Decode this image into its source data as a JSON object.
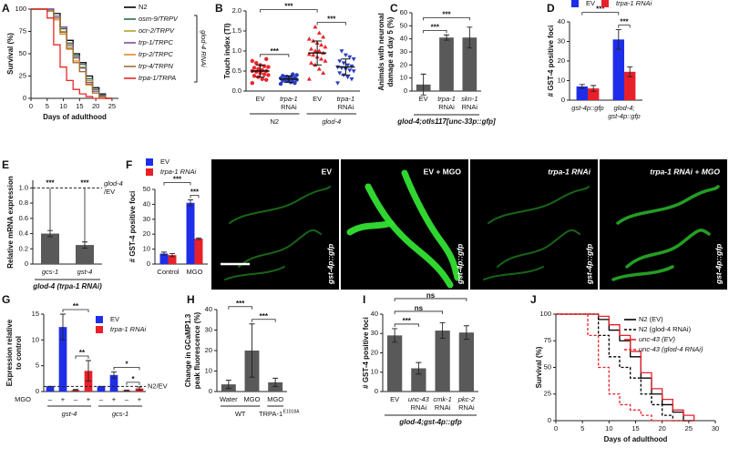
{
  "chart_data": [
    {
      "type": "line",
      "label": "A",
      "ylabel": "Survival (%)",
      "xlabel": "Days of adulthood",
      "xlim": [
        0,
        27
      ],
      "xticks": [
        0,
        5,
        10,
        15,
        20,
        25
      ],
      "ylim": [
        0,
        100
      ],
      "yticks": [
        0,
        25,
        50,
        75,
        100
      ],
      "legend": "right",
      "legend_group": "glod-4 RNAi",
      "x": [
        0,
        5,
        5,
        7,
        7,
        9,
        9,
        11,
        11,
        13,
        13,
        15,
        15,
        17,
        17,
        19,
        19,
        21,
        21,
        23,
        23,
        25,
        25
      ],
      "series": [
        {
          "name": "N2",
          "color": "#000000",
          "values": [
            100,
            100,
            100,
            100,
            95,
            95,
            80,
            80,
            65,
            65,
            50,
            50,
            40,
            40,
            25,
            25,
            12,
            12,
            5,
            5,
            0,
            0,
            0
          ]
        },
        {
          "name": "osm-9/TRPV",
          "color": "#2e6b4e",
          "values": [
            100,
            100,
            100,
            100,
            92,
            92,
            78,
            78,
            62,
            62,
            48,
            48,
            38,
            38,
            22,
            22,
            10,
            10,
            4,
            4,
            0,
            0,
            0
          ]
        },
        {
          "name": "ocr-2/TRPV",
          "color": "#b3a22c",
          "values": [
            100,
            100,
            98,
            98,
            90,
            90,
            75,
            75,
            58,
            58,
            45,
            45,
            35,
            35,
            20,
            20,
            8,
            8,
            2,
            2,
            0,
            0,
            0
          ]
        },
        {
          "name": "trp-1/TRPC",
          "color": "#7d4f96",
          "values": [
            100,
            100,
            100,
            100,
            92,
            92,
            80,
            80,
            60,
            60,
            46,
            46,
            34,
            34,
            18,
            18,
            8,
            8,
            3,
            3,
            0,
            0,
            0
          ]
        },
        {
          "name": "trp-2/TRPC",
          "color": "#e08a2a",
          "values": [
            100,
            100,
            98,
            98,
            88,
            88,
            72,
            72,
            55,
            55,
            42,
            42,
            30,
            30,
            15,
            15,
            6,
            6,
            0,
            0,
            0,
            0,
            0
          ]
        },
        {
          "name": "trp-4/TRPN",
          "color": "#9c6f34",
          "values": [
            100,
            100,
            98,
            98,
            90,
            90,
            74,
            74,
            56,
            56,
            40,
            40,
            30,
            30,
            16,
            16,
            6,
            6,
            2,
            2,
            0,
            0,
            0
          ]
        },
        {
          "name": "trpa-1/TRPA",
          "color": "#e8262a",
          "values": [
            100,
            100,
            90,
            90,
            60,
            60,
            35,
            35,
            20,
            20,
            10,
            10,
            5,
            5,
            2,
            2,
            0,
            0,
            0,
            0,
            0,
            0,
            0
          ]
        }
      ]
    },
    {
      "type": "dot",
      "label": "B",
      "ylabel": "Touch index (TI)",
      "ylim": [
        0,
        2
      ],
      "yticks": [
        {
          "value": 0,
          "label": "0.0"
        },
        0.5,
        {
          "value": 1,
          "label": "1.0"
        },
        1.5,
        {
          "value": 2,
          "label": "2.0"
        }
      ],
      "categories": [
        "EV",
        [
          "trpa-1",
          "RNAi"
        ],
        "EV",
        [
          "trpa-1",
          "RNAi"
        ]
      ],
      "groups": [
        {
          "label": "N2",
          "span": [
            0,
            1
          ]
        },
        {
          "label": "glod-4",
          "span": [
            2,
            3
          ]
        }
      ],
      "colors": [
        "#e8262a",
        "#2a3fbf",
        "#e8262a",
        "#2a3fbf"
      ],
      "markers": [
        "circle",
        "circle",
        "triangle",
        "triangle-down"
      ],
      "points": [
        [
          0.2,
          0.28,
          0.3,
          0.35,
          0.38,
          0.4,
          0.42,
          0.45,
          0.48,
          0.5,
          0.5,
          0.52,
          0.55,
          0.58,
          0.6,
          0.62,
          0.65,
          0.7,
          0.75,
          0.8
        ],
        [
          0.18,
          0.2,
          0.22,
          0.25,
          0.26,
          0.28,
          0.28,
          0.3,
          0.3,
          0.32,
          0.33,
          0.35,
          0.36,
          0.38,
          0.4,
          0.42
        ],
        [
          0.3,
          0.45,
          0.55,
          0.65,
          0.7,
          0.75,
          0.8,
          0.85,
          0.9,
          0.92,
          0.95,
          1.0,
          1.0,
          1.05,
          1.1,
          1.15,
          1.2,
          1.25,
          1.3,
          1.35,
          1.45,
          1.6
        ],
        [
          0.2,
          0.3,
          0.35,
          0.4,
          0.45,
          0.5,
          0.52,
          0.55,
          0.58,
          0.6,
          0.62,
          0.65,
          0.7,
          0.75,
          0.8,
          0.85,
          0.9,
          1.0
        ]
      ],
      "means": [
        0.5,
        0.3,
        0.95,
        0.6
      ],
      "sd": [
        0.15,
        0.08,
        0.3,
        0.2
      ],
      "comparisons": [
        {
          "pair": [
            0,
            1
          ],
          "label": "***"
        },
        {
          "pair": [
            2,
            3
          ],
          "label": "***"
        },
        {
          "pair": [
            0,
            2
          ],
          "label": "***"
        }
      ]
    },
    {
      "type": "bar",
      "label": "C",
      "ylabel": [
        "Animals with neuronal",
        "damage at day 5 (%)"
      ],
      "xlabel": "glod-4;otIs117[unc-33p::gfp]",
      "ylim": [
        0,
        60
      ],
      "yticks": [
        0,
        10,
        20,
        30,
        40,
        50,
        60
      ],
      "categories": [
        "EV",
        [
          "trpa-1",
          "RNAi"
        ],
        [
          "skn-1",
          "RNAi"
        ]
      ],
      "values": [
        5,
        41,
        41
      ],
      "errors": [
        8,
        2,
        8
      ],
      "color": "#595959",
      "comparisons": [
        {
          "pair": [
            0,
            1
          ],
          "label": "***"
        },
        {
          "pair": [
            0,
            2
          ],
          "label": "***"
        }
      ]
    },
    {
      "type": "bar",
      "label": "D",
      "ylabel": "# GST-4 positive foci",
      "ylim": [
        0,
        40
      ],
      "yticks": [
        0,
        10,
        20,
        30,
        40
      ],
      "categories": [
        "gst-4p::gfp",
        [
          "glod-4;",
          "gst-4p::gfp"
        ]
      ],
      "legend": "top",
      "series": [
        {
          "name": "EV",
          "color": "#1e2ee8",
          "values": [
            7,
            31
          ],
          "errors": [
            1,
            5
          ]
        },
        {
          "name": "trpa-1 RNAi",
          "color": "#e8202a",
          "values": [
            6,
            14.5
          ],
          "errors": [
            1.5,
            2.5
          ]
        }
      ],
      "comparisons": [
        {
          "pair": [
            2,
            3
          ],
          "label": "***"
        },
        {
          "pair": [
            0,
            2
          ],
          "label": "***"
        }
      ]
    },
    {
      "type": "bar",
      "label": "E",
      "ylabel": "Relative mRNA expression",
      "xlabel": "glod-4 (trpa-1 RNAi)",
      "ylim": [
        0,
        1.1
      ],
      "yticks": [
        0,
        0.2,
        0.4,
        0.6,
        0.8,
        {
          "value": 1,
          "label": "1.0"
        }
      ],
      "categories": [
        "gcs-1",
        "gst-4"
      ],
      "values": [
        0.4,
        0.25
      ],
      "errors": [
        0.04,
        0.04
      ],
      "color": "#595959",
      "ref_line": 1,
      "ref_label": [
        "glod-4",
        "/EV"
      ],
      "bar_labels": [
        "***",
        "***"
      ]
    },
    {
      "type": "bar",
      "label": "F",
      "ylabel": "# GST-4 positive foci",
      "ylim": [
        0,
        50
      ],
      "yticks": [
        0,
        10,
        20,
        30,
        40,
        50
      ],
      "categories": [
        "Control",
        "MGO"
      ],
      "legend": "top left",
      "series": [
        {
          "name": "EV",
          "color": "#1e2ee8",
          "values": [
            7,
            41
          ],
          "errors": [
            1,
            2
          ]
        },
        {
          "name": "trpa-1 RNAi",
          "color": "#e8202a",
          "values": [
            6,
            17
          ],
          "errors": [
            1,
            0.5
          ]
        }
      ],
      "comparisons": [
        {
          "pair": [
            2,
            3
          ],
          "label": "***"
        },
        {
          "pair": [
            0,
            2
          ],
          "label": "***"
        }
      ],
      "images": [
        {
          "label": "EV",
          "tag": "gst-4p::gfp"
        },
        {
          "label": "EV + MGO",
          "tag": "gst-4p::gfp"
        },
        {
          "label": "trpa-1 RNAi",
          "tag": "gst-4p::gfp"
        },
        {
          "label": "trpa-1 RNAi + MGO",
          "tag": "gst-4p::gfp"
        }
      ]
    },
    {
      "type": "bar",
      "label": "G",
      "ylabel": [
        "Expression relative",
        "to control"
      ],
      "ylim": [
        0,
        15
      ],
      "yticks": [
        0,
        5,
        10,
        15
      ],
      "categories": [
        "–",
        "+",
        "–",
        "+",
        "–",
        "+",
        "–",
        "+"
      ],
      "category_title": "MGO",
      "groups": [
        {
          "label": "gst-4",
          "span": [
            0,
            3
          ]
        },
        {
          "label": "gcs-1",
          "span": [
            4,
            7
          ]
        }
      ],
      "legend": "upper right",
      "series": [
        {
          "name": "EV",
          "color": "#1e2ee8",
          "values": [
            1,
            12.5,
            null,
            null,
            1,
            3.2,
            null,
            null
          ],
          "errors": [
            0,
            2.5,
            null,
            null,
            0,
            0.6,
            null,
            null
          ]
        },
        {
          "name": "trpa-1 RNAi",
          "color": "#e8202a",
          "values": [
            null,
            null,
            0.3,
            4,
            null,
            null,
            0.2,
            0.6
          ],
          "errors": [
            null,
            null,
            0.1,
            2,
            null,
            null,
            0.1,
            0.3
          ]
        }
      ],
      "ref_line": 1,
      "ref_label": "N2/EV",
      "comparisons": [
        {
          "pair": [
            2,
            3
          ],
          "label": "**"
        },
        {
          "pair": [
            1,
            3
          ],
          "label": "**"
        },
        {
          "pair": [
            6,
            7
          ],
          "label": "*"
        },
        {
          "pair": [
            5,
            7
          ],
          "label": "*"
        }
      ]
    },
    {
      "type": "bar",
      "label": "H",
      "ylabel": [
        "Change in GCaMP1.3",
        "peak fluorescence (%)"
      ],
      "ylim": [
        0,
        40
      ],
      "yticks": [
        0,
        10,
        20,
        30,
        40
      ],
      "categories": [
        "Water",
        "MGO",
        "MGO"
      ],
      "groups": [
        {
          "label": "WT",
          "span": [
            0,
            1
          ]
        },
        {
          "label": "TRPA-1",
          "sup": "E1018A",
          "span": [
            2,
            2
          ]
        }
      ],
      "values": [
        3.5,
        20,
        4.5
      ],
      "errors": [
        2,
        13,
        2
      ],
      "color": "#595959",
      "comparisons": [
        {
          "pair": [
            1,
            2
          ],
          "label": "***"
        },
        {
          "pair": [
            0,
            1
          ],
          "label": "***"
        }
      ]
    },
    {
      "type": "bar",
      "label": "I",
      "ylabel": "# GST-4 positive foci",
      "xlabel": "glod-4;gst-4p::gfp",
      "ylim": [
        0,
        40
      ],
      "yticks": [
        0,
        10,
        20,
        30,
        40
      ],
      "categories": [
        "EV",
        [
          "unc-43",
          "RNAi"
        ],
        [
          "cmk-1",
          "RNAi"
        ],
        [
          "pkc-2",
          "RNAi"
        ]
      ],
      "values": [
        29,
        12,
        31.5,
        30.5
      ],
      "errors": [
        3.5,
        3,
        4,
        3.5
      ],
      "color": "#595959",
      "comparisons": [
        {
          "pair": [
            0,
            1
          ],
          "label": "***"
        },
        {
          "pair": [
            0,
            2
          ],
          "label": "ns"
        },
        {
          "pair": [
            0,
            3
          ],
          "label": "ns"
        }
      ]
    },
    {
      "type": "line",
      "label": "J",
      "ylabel": "Survival (%)",
      "xlabel": "Days of adulthood",
      "xlim": [
        0,
        30
      ],
      "xticks": [
        0,
        5,
        10,
        15,
        20,
        25,
        30
      ],
      "ylim": [
        0,
        100
      ],
      "yticks": [
        0,
        25,
        50,
        75,
        100
      ],
      "legend": "upper right",
      "x": [
        0,
        6,
        6,
        8,
        8,
        10,
        10,
        12,
        12,
        14,
        14,
        16,
        16,
        18,
        18,
        20,
        20,
        22,
        22,
        24,
        24,
        26,
        26
      ],
      "series": [
        {
          "name": "N2 (EV)",
          "color": "#000000",
          "dash": false,
          "values": [
            100,
            100,
            100,
            100,
            95,
            95,
            85,
            85,
            75,
            75,
            60,
            60,
            40,
            40,
            25,
            25,
            15,
            15,
            8,
            8,
            0,
            0,
            0
          ]
        },
        {
          "name": "N2 (glod-4 RNAi)",
          "color": "#000000",
          "dash": true,
          "values": [
            100,
            100,
            100,
            100,
            80,
            80,
            60,
            60,
            50,
            50,
            40,
            40,
            25,
            25,
            15,
            15,
            5,
            5,
            0,
            0,
            0,
            0,
            0
          ]
        },
        {
          "name": "unc-43 (EV)",
          "color": "#e8202a",
          "dash": false,
          "values": [
            100,
            100,
            100,
            100,
            98,
            98,
            90,
            90,
            80,
            80,
            65,
            65,
            45,
            45,
            30,
            30,
            20,
            20,
            10,
            10,
            5,
            5,
            0
          ]
        },
        {
          "name": "unc-43 (glod-4 RNAi)",
          "color": "#e8202a",
          "dash": true,
          "values": [
            100,
            100,
            80,
            80,
            50,
            50,
            25,
            25,
            15,
            15,
            10,
            10,
            5,
            5,
            0,
            0,
            0,
            0,
            0,
            0,
            0,
            0,
            0
          ]
        }
      ]
    }
  ]
}
